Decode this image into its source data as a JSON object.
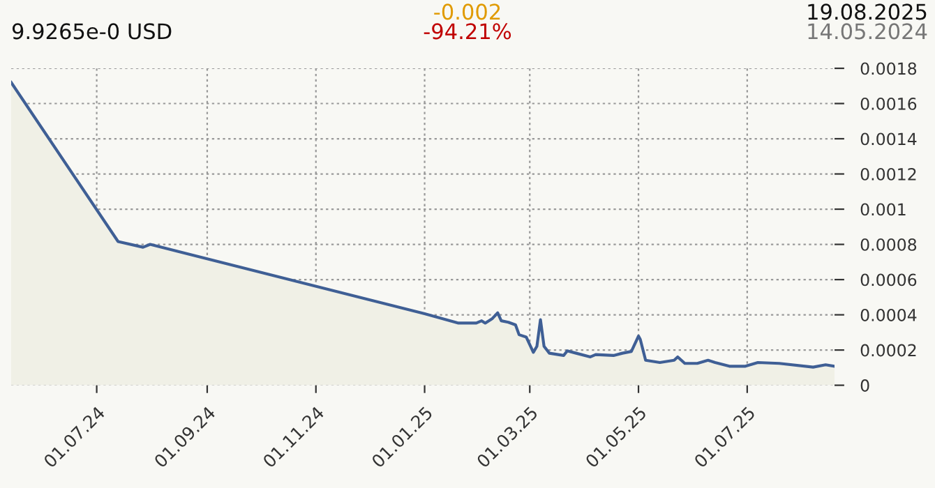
{
  "chart_data": {
    "type": "area",
    "annotations": [
      "9.9265e-0 USD",
      "-0.002",
      "-94.21%",
      "19.08.2025",
      "14.05.2024"
    ],
    "x": [
      "2024-05-14",
      "2024-07-13",
      "2024-07-27",
      "2024-07-31",
      "2025-01-01",
      "2025-01-20",
      "2025-01-30",
      "2025-02-02",
      "2025-02-04",
      "2025-02-08",
      "2025-02-11",
      "2025-02-13",
      "2025-02-17",
      "2025-02-21",
      "2025-02-23",
      "2025-02-27",
      "2025-03-03",
      "2025-03-05",
      "2025-03-07",
      "2025-03-09",
      "2025-03-12",
      "2025-03-20",
      "2025-03-22",
      "2025-03-27",
      "2025-04-04",
      "2025-04-07",
      "2025-04-17",
      "2025-04-22",
      "2025-04-27",
      "2025-05-01",
      "2025-05-02",
      "2025-05-05",
      "2025-05-13",
      "2025-05-21",
      "2025-05-23",
      "2025-05-27",
      "2025-06-03",
      "2025-06-09",
      "2025-06-13",
      "2025-06-21",
      "2025-06-30",
      "2025-07-07",
      "2025-07-19",
      "2025-08-07",
      "2025-08-14",
      "2025-08-19"
    ],
    "series": [
      {
        "color": "#3f5f95",
        "values": [
          0.00172,
          0.000816,
          0.000784,
          0.0008,
          0.000406,
          0.000353,
          0.000353,
          0.000366,
          0.000353,
          0.000379,
          0.000411,
          0.000366,
          0.000358,
          0.000343,
          0.000287,
          0.000274,
          0.000187,
          0.000221,
          0.000372,
          0.000221,
          0.000182,
          0.000169,
          0.000195,
          0.000182,
          0.000161,
          0.000174,
          0.000169,
          0.000182,
          0.000192,
          0.000279,
          0.000261,
          0.000142,
          0.000129,
          0.000142,
          0.000161,
          0.000124,
          0.000124,
          0.000142,
          0.000129,
          0.000108,
          0.000108,
          0.000129,
          0.000124,
          0.000103,
          0.000116,
          0.000108
        ]
      }
    ],
    "xlim": [
      "2024-05-14",
      "2025-08-19"
    ],
    "xticks": [
      {
        "value": "2024-07-01",
        "label": "01.07.24"
      },
      {
        "value": "2024-09-01",
        "label": "01.09.24"
      },
      {
        "value": "2024-11-01",
        "label": "01.11.24"
      },
      {
        "value": "2025-01-01",
        "label": "01.01.25"
      },
      {
        "value": "2025-03-01",
        "label": "01.03.25"
      },
      {
        "value": "2025-05-01",
        "label": "01.05.25"
      },
      {
        "value": "2025-07-01",
        "label": "01.07.25"
      }
    ],
    "ylim": [
      0,
      0.0018
    ],
    "yticks": [
      0,
      0.0002,
      0.0004,
      0.0006,
      0.0008,
      0.001,
      0.0012,
      0.0014,
      0.0016,
      0.0018
    ],
    "grid": true,
    "line_style": "solid"
  }
}
